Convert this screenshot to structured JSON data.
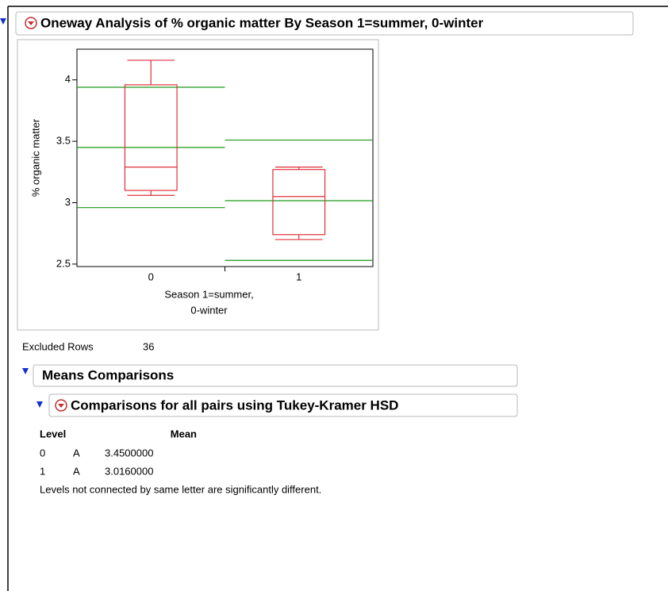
{
  "header": {
    "title": "Oneway Analysis of % organic matter By Season  1=summer, 0-winter"
  },
  "chart_data": {
    "type": "box",
    "ylabel": "% organic matter",
    "xlabel": [
      "Season  1=summer,",
      "0-winter"
    ],
    "categories": [
      "0",
      "1"
    ],
    "boxes": [
      {
        "min": 3.06,
        "q1": 3.1,
        "median": 3.29,
        "q3": 3.96,
        "max": 4.16
      },
      {
        "min": 2.7,
        "q1": 2.74,
        "median": 3.05,
        "q3": 3.27,
        "max": 3.29
      }
    ],
    "box_color": "#e0303c",
    "means": [
      3.45,
      3.016
    ],
    "std_upper": [
      3.94,
      3.51
    ],
    "std_lower": [
      2.96,
      2.53
    ],
    "line_color": "#1a9a1a",
    "ylim": [
      2.48,
      4.25
    ],
    "yticks": [
      2.5,
      3,
      3.5,
      4
    ]
  },
  "excluded": {
    "label": "Excluded Rows",
    "value": "36"
  },
  "means_comparisons": {
    "title": "Means Comparisons",
    "tukey": {
      "title": "Comparisons for all pairs using Tukey-Kramer HSD",
      "columns": [
        "Level",
        "Mean"
      ],
      "rows": [
        [
          "0",
          "A",
          "3.4500000"
        ],
        [
          "1",
          "A",
          "3.0160000"
        ]
      ],
      "note": "Levels not connected by same letter are significantly different."
    }
  }
}
